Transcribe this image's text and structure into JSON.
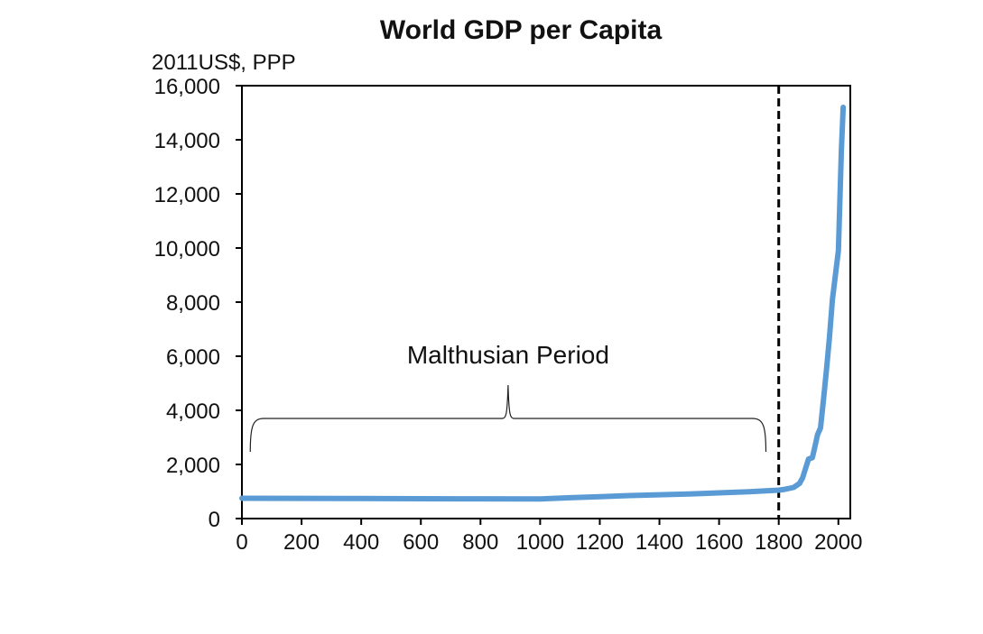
{
  "chart_data": {
    "type": "line",
    "title": "World GDP per Capita",
    "ylabel": "2011US$, PPP",
    "xlabel": "",
    "xlim": [
      0,
      2040
    ],
    "ylim": [
      0,
      16000
    ],
    "x_ticks": [
      0,
      200,
      400,
      600,
      800,
      1000,
      1200,
      1400,
      1600,
      1800,
      2000
    ],
    "x_tick_labels": [
      "0",
      "200",
      "400",
      "600",
      "800",
      "1000",
      "1200",
      "1400",
      "1600",
      "1800",
      "2000"
    ],
    "y_ticks": [
      0,
      2000,
      4000,
      6000,
      8000,
      10000,
      12000,
      14000,
      16000
    ],
    "y_tick_labels": [
      "0",
      "2,000",
      "4,000",
      "6,000",
      "8,000",
      "10,000",
      "12,000",
      "14,000",
      "16,000"
    ],
    "grid": false,
    "series": [
      {
        "color": "#5b9bd5",
        "x": [
          0,
          200,
          400,
          600,
          800,
          1000,
          1100,
          1200,
          1300,
          1400,
          1500,
          1600,
          1700,
          1750,
          1800,
          1820,
          1850,
          1870,
          1880,
          1890,
          1900,
          1913,
          1920,
          1930,
          1940,
          1950,
          1960,
          1970,
          1980,
          1990,
          2000,
          2010,
          2016
        ],
        "values": [
          750,
          745,
          740,
          735,
          730,
          725,
          770,
          810,
          850,
          880,
          910,
          950,
          990,
          1020,
          1050,
          1080,
          1150,
          1300,
          1500,
          1850,
          2200,
          2250,
          2600,
          3100,
          3350,
          4400,
          5500,
          6700,
          8100,
          9000,
          9900,
          13600,
          15200
        ]
      }
    ],
    "reference_lines": [
      {
        "axis": "x",
        "value": 1800,
        "style": "dashed",
        "color": "#000000"
      }
    ],
    "annotations": [
      {
        "text": "Malthusian Period",
        "from_x": 25,
        "to_x": 1760,
        "y": 3700,
        "kind": "brace"
      }
    ]
  }
}
